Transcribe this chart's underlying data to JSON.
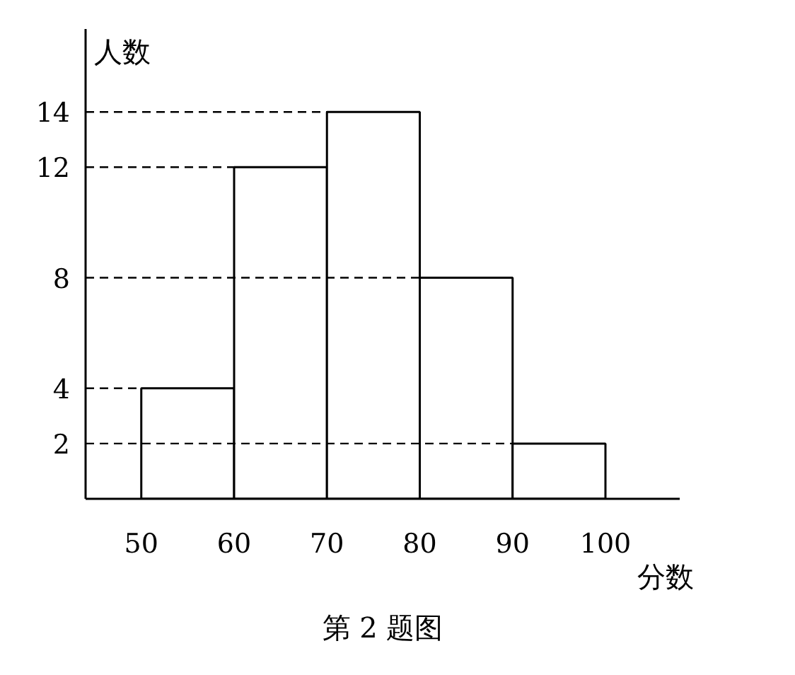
{
  "chart_data": {
    "type": "histogram",
    "title": "第 2 题图",
    "xlabel": "分数",
    "ylabel": "人数",
    "bins": [
      50,
      60,
      70,
      80,
      90,
      100
    ],
    "values": [
      4,
      12,
      14,
      8,
      2
    ],
    "color": "#ffffff",
    "xlim": [
      44,
      108
    ],
    "ylim": [
      0,
      17
    ],
    "xticks": [
      50,
      60,
      70,
      80,
      90,
      100
    ],
    "yticks": [
      2,
      4,
      8,
      12,
      14
    ],
    "ref_lines": [
      {
        "axis": "y",
        "value": 4,
        "line_style": "dashed"
      },
      {
        "axis": "y",
        "value": 12,
        "line_style": "dashed"
      },
      {
        "axis": "y",
        "value": 14,
        "line_style": "dashed"
      },
      {
        "axis": "y",
        "value": 8,
        "line_style": "dashed"
      },
      {
        "axis": "y",
        "value": 2,
        "line_style": "dashed"
      }
    ]
  }
}
